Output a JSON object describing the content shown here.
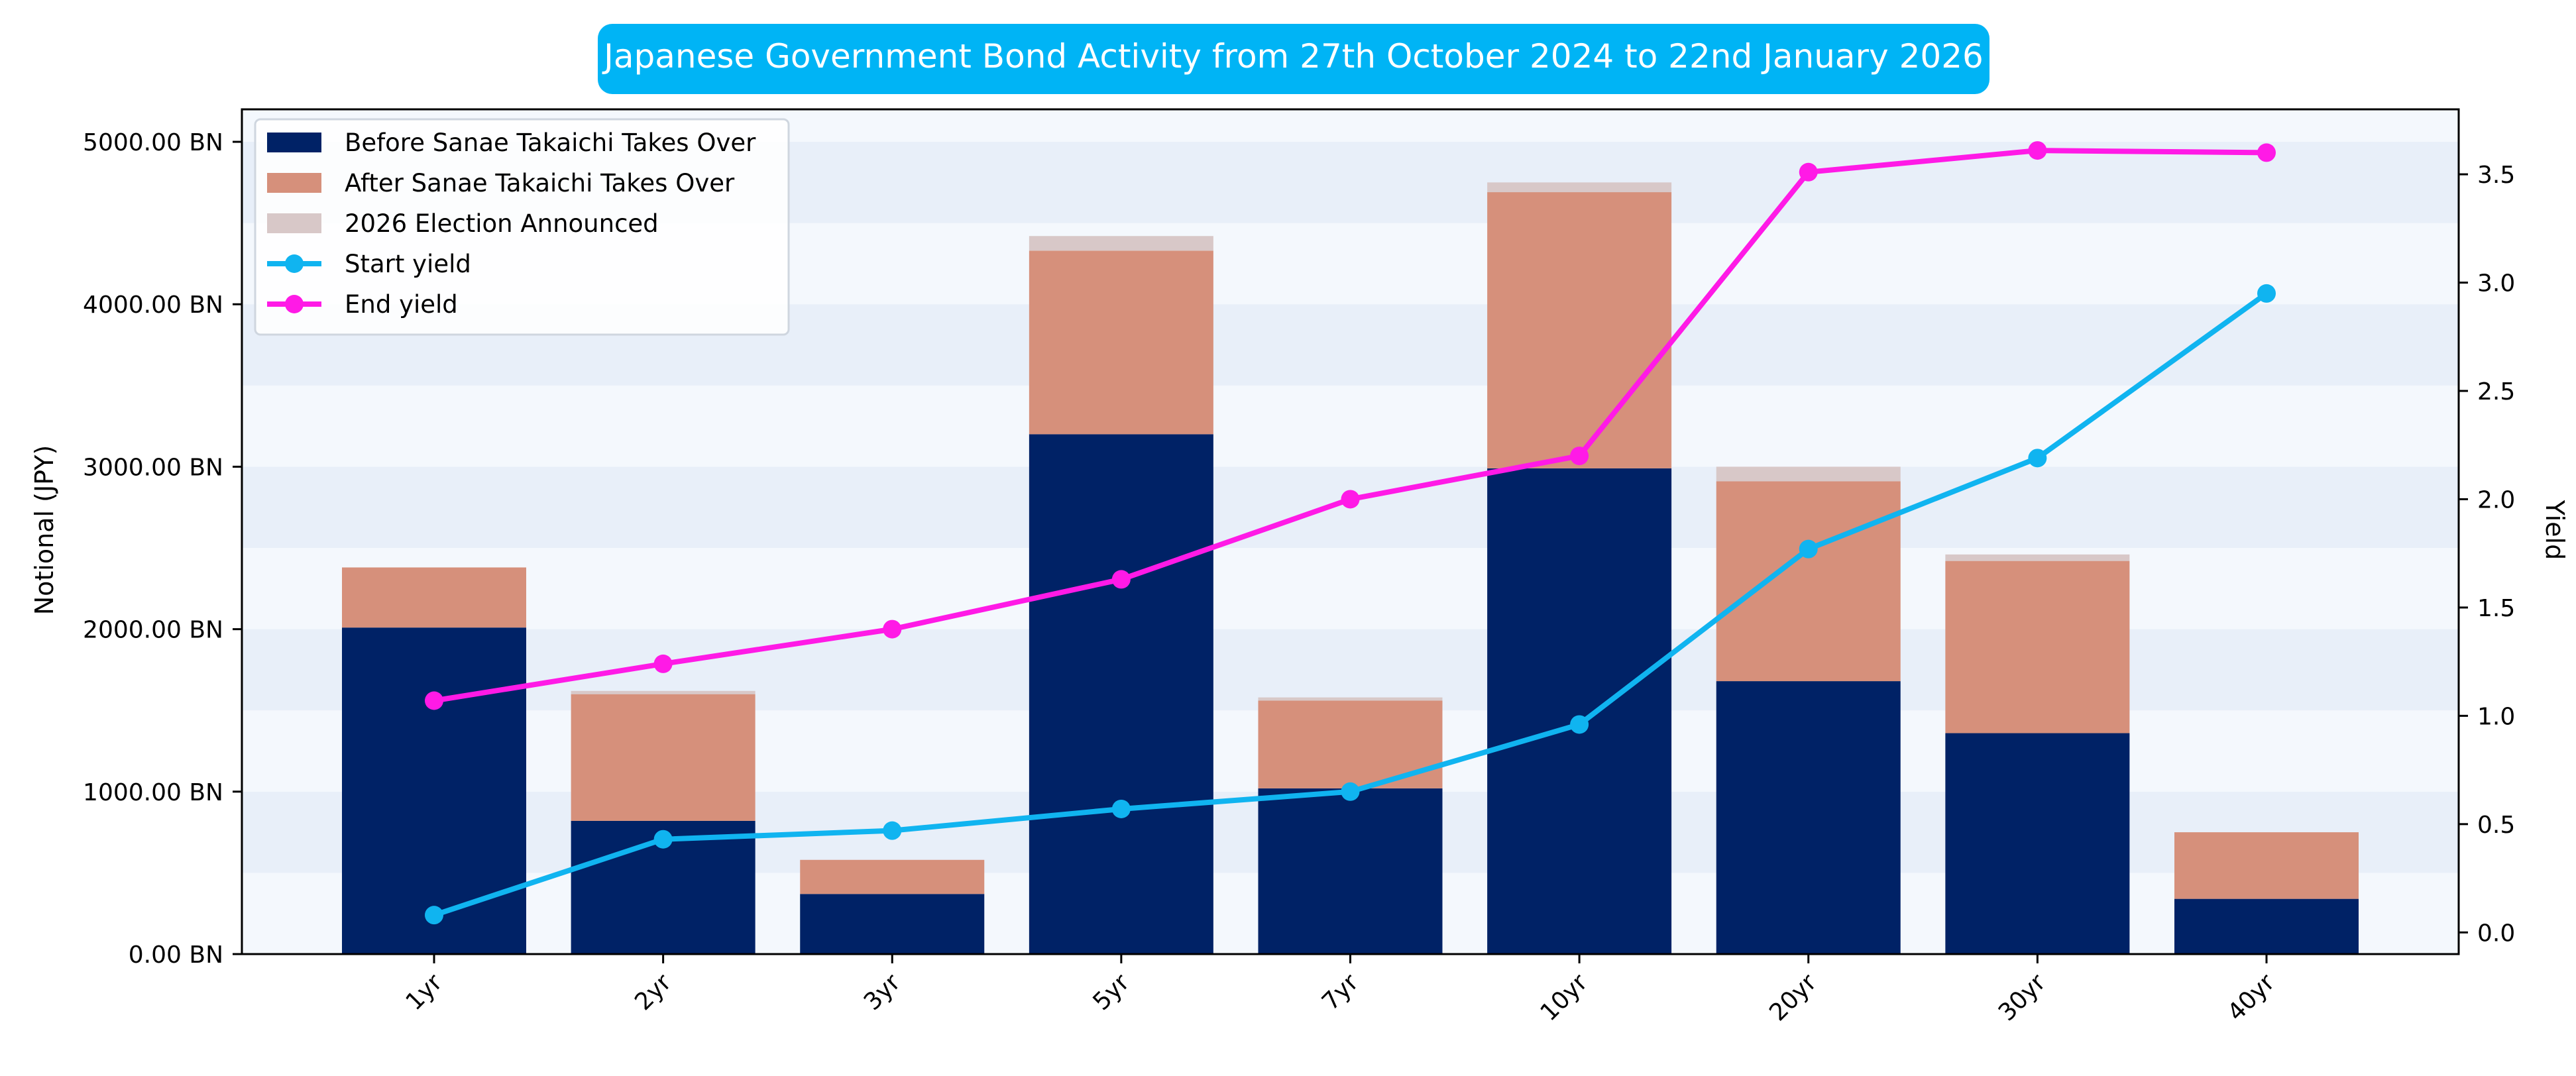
{
  "chart_data": {
    "type": "bar",
    "stacked": true,
    "title": "Japanese Government Bond Activity from 27th October 2024 to 22nd January 2026",
    "xlabel": "",
    "ylabel": "Notional (JPY)",
    "y2label": "Yield",
    "categories": [
      "1yr",
      "2yr",
      "3yr",
      "5yr",
      "7yr",
      "10yr",
      "20yr",
      "30yr",
      "40yr"
    ],
    "ylim": [
      0,
      5200
    ],
    "y2lim": [
      -0.1,
      3.8
    ],
    "yticks": [
      0,
      1000,
      2000,
      3000,
      4000,
      5000
    ],
    "ytick_labels": [
      "0.00 BN",
      "1000.00 BN",
      "2000.00 BN",
      "3000.00 BN",
      "4000.00 BN",
      "5000.00 BN"
    ],
    "y2ticks": [
      0.0,
      0.5,
      1.0,
      1.5,
      2.0,
      2.5,
      3.0,
      3.5
    ],
    "y2tick_labels": [
      "0.0",
      "0.5",
      "1.0",
      "1.5",
      "2.0",
      "2.5",
      "3.0",
      "3.5"
    ],
    "legend_position": "top-left",
    "series": [
      {
        "name": "Before Sanae Takaichi Takes Over",
        "kind": "bar",
        "axis": "left",
        "color": "#002266",
        "values": [
          2010,
          820,
          370,
          3200,
          1020,
          2990,
          1680,
          1360,
          340
        ]
      },
      {
        "name": "After Sanae Takaichi Takes Over",
        "kind": "bar",
        "axis": "left",
        "color": "#d6907b",
        "values": [
          370,
          780,
          210,
          1130,
          540,
          1700,
          1230,
          1060,
          410
        ]
      },
      {
        "name": "2026 Election Announced",
        "kind": "bar",
        "axis": "left",
        "color": "#d8c8c8",
        "values": [
          0,
          20,
          0,
          90,
          20,
          60,
          90,
          40,
          0
        ]
      },
      {
        "name": "Start yield",
        "kind": "line",
        "axis": "right",
        "color": "#10b4f0",
        "values": [
          0.08,
          0.43,
          0.47,
          0.57,
          0.65,
          0.96,
          1.77,
          2.19,
          2.95
        ]
      },
      {
        "name": "End yield",
        "kind": "line",
        "axis": "right",
        "color": "#ff1ae6",
        "values": [
          1.07,
          1.24,
          1.4,
          1.63,
          2.0,
          2.2,
          3.51,
          3.61,
          3.6
        ]
      }
    ],
    "colors": {
      "title_background": "#00b4f5",
      "title_text": "#ffffff",
      "plot_band_light": "#f4f8fd",
      "plot_band_dark": "#e8eff9",
      "axis": "#000000"
    }
  }
}
